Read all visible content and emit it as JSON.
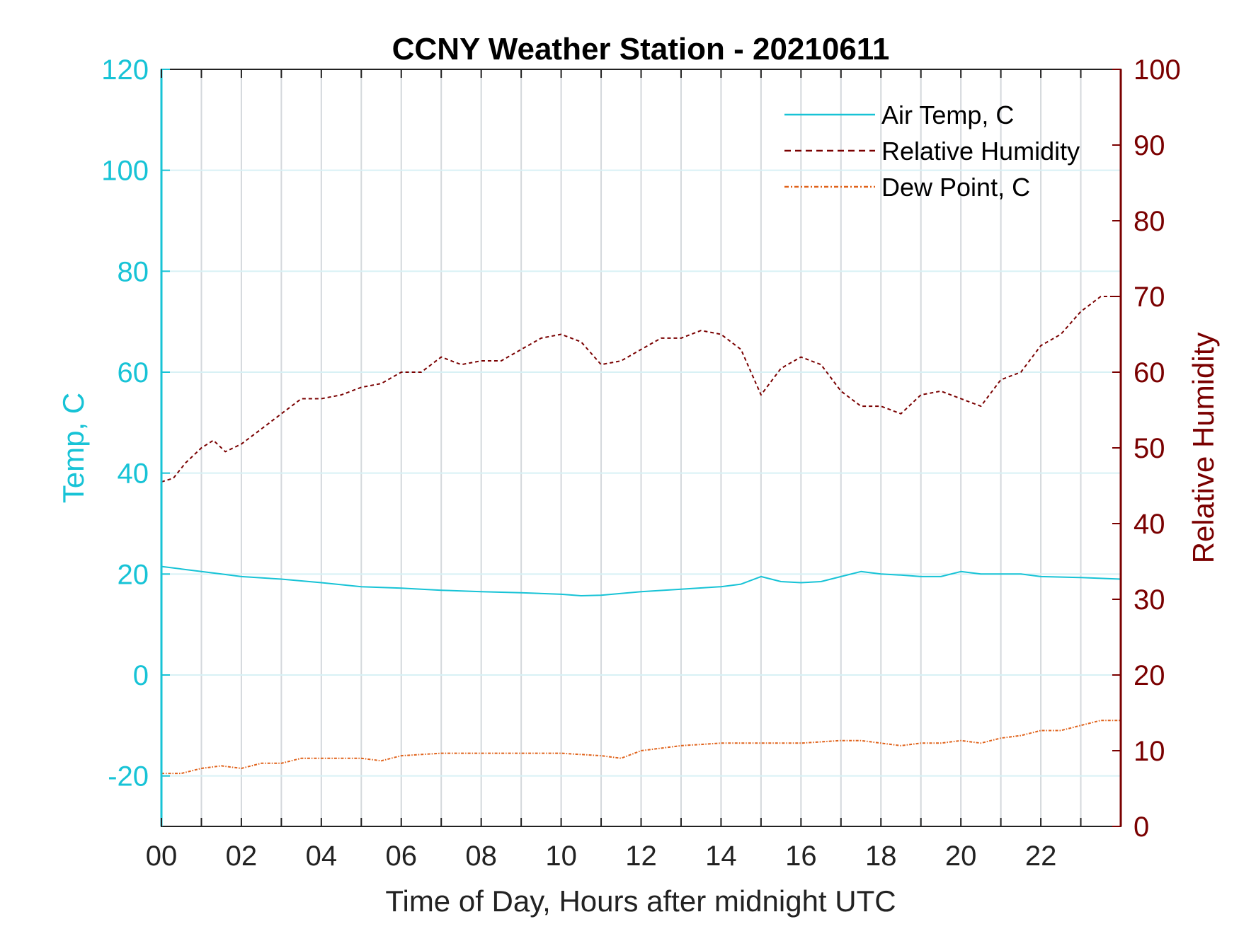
{
  "chart_data": {
    "type": "line",
    "title": "CCNY Weather Station - 20210611",
    "xlabel": "Time of Day, Hours after midnight UTC",
    "ylabel_left": "Temp, C",
    "ylabel_right": "Relative Humidity",
    "xlim": [
      0,
      24
    ],
    "ylim_left": [
      -30,
      120
    ],
    "ylim_right": [
      0,
      100
    ],
    "x_ticks": [
      0,
      2,
      4,
      6,
      8,
      10,
      12,
      14,
      16,
      18,
      20,
      22
    ],
    "x_tick_labels": [
      "00",
      "02",
      "04",
      "06",
      "08",
      "10",
      "12",
      "14",
      "16",
      "18",
      "20",
      "22"
    ],
    "y_left_ticks": [
      -20,
      0,
      20,
      40,
      60,
      80,
      100,
      120
    ],
    "y_left_tick_labels": [
      "-20",
      "0",
      "20",
      "40",
      "60",
      "80",
      "100",
      "120"
    ],
    "y_right_ticks": [
      0,
      10,
      20,
      30,
      40,
      50,
      60,
      70,
      80,
      90,
      100
    ],
    "y_right_tick_labels": [
      "0",
      "10",
      "20",
      "30",
      "40",
      "50",
      "60",
      "70",
      "80",
      "90",
      "100"
    ],
    "grid": true,
    "legend_position": "top-right",
    "colors": {
      "temp": "#17c3d6",
      "rh": "#7a0000",
      "dew": "#e0621a"
    },
    "series": [
      {
        "name": "Air Temp, C",
        "axis": "left",
        "style": "solid",
        "x": [
          0,
          0.5,
          1,
          1.5,
          2,
          3,
          4,
          5,
          6,
          7,
          8,
          9,
          10,
          10.5,
          11,
          12,
          13,
          14,
          14.5,
          15,
          15.5,
          16,
          16.5,
          17,
          17.5,
          18,
          18.5,
          19,
          19.5,
          20,
          20.5,
          21,
          21.5,
          22,
          23,
          24
        ],
        "y": [
          21.5,
          21,
          20.5,
          20,
          19.5,
          19,
          18.3,
          17.5,
          17.2,
          16.8,
          16.5,
          16.3,
          16,
          15.7,
          15.8,
          16.5,
          17,
          17.5,
          18,
          19.5,
          18.5,
          18.3,
          18.5,
          19.5,
          20.5,
          20,
          19.8,
          19.5,
          19.5,
          20.5,
          20,
          20,
          20,
          19.5,
          19.3,
          19
        ]
      },
      {
        "name": "Relative Humidity",
        "axis": "right",
        "style": "dashed",
        "x": [
          0,
          0.3,
          0.6,
          1,
          1.3,
          1.6,
          2,
          2.5,
          3,
          3.5,
          4,
          4.5,
          5,
          5.5,
          6,
          6.5,
          7,
          7.5,
          8,
          8.5,
          9,
          9.5,
          10,
          10.5,
          11,
          11.5,
          12,
          12.5,
          13,
          13.5,
          14,
          14.5,
          15,
          15.5,
          16,
          16.5,
          17,
          17.5,
          18,
          18.5,
          19,
          19.5,
          20,
          20.5,
          21,
          21.5,
          22,
          22.5,
          23,
          23.5,
          24
        ],
        "y": [
          45.5,
          46,
          48,
          50,
          51,
          49.5,
          50.5,
          52.5,
          54.5,
          56.5,
          56.5,
          57,
          58,
          58.5,
          60,
          60,
          62,
          61,
          61.5,
          61.5,
          63,
          64.5,
          65,
          64,
          61,
          61.5,
          63,
          64.5,
          64.5,
          65.5,
          65,
          63,
          57,
          60.5,
          62,
          61,
          57.5,
          55.5,
          55.5,
          54.5,
          57,
          57.5,
          56.5,
          55.5,
          59,
          60,
          63.5,
          65,
          68,
          70,
          70
        ]
      },
      {
        "name": "Dew Point, C",
        "axis": "left",
        "style": "dashdot",
        "x": [
          0,
          0.5,
          1,
          1.5,
          2,
          2.5,
          3,
          3.5,
          4,
          5,
          5.5,
          6,
          7,
          8,
          9,
          10,
          11,
          11.5,
          12,
          13,
          14,
          15,
          16,
          17,
          17.5,
          18,
          18.5,
          19,
          19.5,
          20,
          20.5,
          21,
          21.5,
          22,
          22.5,
          23,
          23.5,
          24
        ],
        "y": [
          -19.5,
          -19.5,
          -18.5,
          -18,
          -18.5,
          -17.5,
          -17.5,
          -16.5,
          -16.5,
          -16.5,
          -17,
          -16,
          -15.5,
          -15.5,
          -15.5,
          -15.5,
          -16,
          -16.5,
          -15,
          -14,
          -13.5,
          -13.5,
          -13.5,
          -13,
          -13,
          -13.5,
          -14,
          -13.5,
          -13.5,
          -13,
          -13.5,
          -12.5,
          -12,
          -11,
          -11,
          -10,
          -9,
          -9
        ]
      }
    ]
  }
}
